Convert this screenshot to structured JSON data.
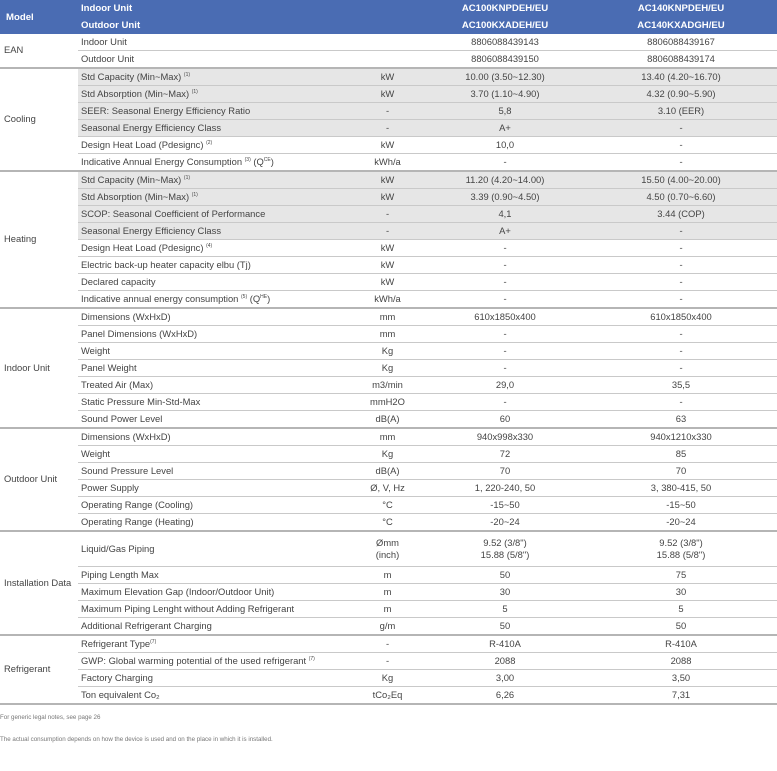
{
  "header": {
    "model_label": "Model",
    "indoor_label": "Indoor Unit",
    "outdoor_label": "Outdoor Unit",
    "models": [
      {
        "indoor": "AC100KNPDEH/EU",
        "outdoor": "AC100KXADEH/EU"
      },
      {
        "indoor": "AC140KNPDEH/EU",
        "outdoor": "AC140KXADGH/EU"
      }
    ]
  },
  "sections": [
    {
      "name": "EAN",
      "rows": [
        {
          "parts": [
            {
              "t": "Indoor Unit"
            }
          ],
          "unit": "",
          "v1": "8806088439143",
          "v2": "8806088439167",
          "shaded": false
        },
        {
          "parts": [
            {
              "t": "Outdoor Unit"
            }
          ],
          "unit": "",
          "v1": "8806088439150",
          "v2": "8806088439174",
          "shaded": false
        }
      ]
    },
    {
      "name": "Cooling",
      "rows": [
        {
          "parts": [
            {
              "t": "Std Capacity (Min~Max) "
            },
            {
              "t": "(1)",
              "sup": true
            }
          ],
          "unit": "kW",
          "v1": "10.00 (3.50~12.30)",
          "v2": "13.40 (4.20~16.70)",
          "shaded": true
        },
        {
          "parts": [
            {
              "t": "Std Absorption (Min~Max) "
            },
            {
              "t": "(1)",
              "sup": true
            }
          ],
          "unit": "kW",
          "v1": "3.70 (1.10~4.90)",
          "v2": "4.32 (0.90~5.90)",
          "shaded": true
        },
        {
          "parts": [
            {
              "t": "SEER: Seasonal Energy Efficiency Ratio"
            }
          ],
          "unit": "-",
          "v1": "5,8",
          "v2": "3.10 (EER)",
          "shaded": true
        },
        {
          "parts": [
            {
              "t": "Seasonal Energy Efficiency Class"
            }
          ],
          "unit": "-",
          "v1": "A+",
          "v2": "-",
          "shaded": true
        },
        {
          "parts": [
            {
              "t": "Design Heat Load (Pdesignc) "
            },
            {
              "t": "(2)",
              "sup": true
            }
          ],
          "unit": "kW",
          "v1": "10,0",
          "v2": "-",
          "shaded": false
        },
        {
          "parts": [
            {
              "t": "Indicative Annual Energy Consumption "
            },
            {
              "t": "(3)",
              "sup": true
            },
            {
              "t": " (Q"
            },
            {
              "t": "CE",
              "sup": true
            },
            {
              "t": ")"
            }
          ],
          "unit": "kWh/a",
          "v1": "-",
          "v2": "-",
          "shaded": false
        }
      ]
    },
    {
      "name": "Heating",
      "rows": [
        {
          "parts": [
            {
              "t": "Std Capacity (Min~Max) "
            },
            {
              "t": "(1)",
              "sup": true
            }
          ],
          "unit": "kW",
          "v1": "11.20 (4.20~14.00)",
          "v2": "15.50 (4.00~20.00)",
          "shaded": true
        },
        {
          "parts": [
            {
              "t": "Std Absorption (Min~Max) "
            },
            {
              "t": "(1)",
              "sup": true
            }
          ],
          "unit": "kW",
          "v1": "3.39 (0.90~4.50)",
          "v2": "4.50 (0.70~6.60)",
          "shaded": true
        },
        {
          "parts": [
            {
              "t": "SCOP: Seasonal Coefficient of Performance"
            }
          ],
          "unit": "-",
          "v1": "4,1",
          "v2": "3.44 (COP)",
          "shaded": true
        },
        {
          "parts": [
            {
              "t": "Seasonal Energy Efficiency Class"
            }
          ],
          "unit": "-",
          "v1": "A+",
          "v2": "-",
          "shaded": true
        },
        {
          "parts": [
            {
              "t": "Design Heat Load (Pdesignc) "
            },
            {
              "t": "(4)",
              "sup": true
            }
          ],
          "unit": "kW",
          "v1": "-",
          "v2": "-",
          "shaded": false
        },
        {
          "parts": [
            {
              "t": "Electric back-up heater capacity elbu (Tj)"
            }
          ],
          "unit": "kW",
          "v1": "-",
          "v2": "-",
          "shaded": false
        },
        {
          "parts": [
            {
              "t": "Declared capacity"
            }
          ],
          "unit": "kW",
          "v1": "-",
          "v2": "-",
          "shaded": false
        },
        {
          "parts": [
            {
              "t": "Indicative annual energy consumption "
            },
            {
              "t": "(5)",
              "sup": true
            },
            {
              "t": " (Q"
            },
            {
              "t": "HE",
              "sup": true
            },
            {
              "t": ")"
            }
          ],
          "unit": "kWh/a",
          "v1": "-",
          "v2": "-",
          "shaded": false
        }
      ]
    },
    {
      "name": "Indoor Unit",
      "rows": [
        {
          "parts": [
            {
              "t": "Dimensions (WxHxD)"
            }
          ],
          "unit": "mm",
          "v1": "610x1850x400",
          "v2": "610x1850x400",
          "shaded": false
        },
        {
          "parts": [
            {
              "t": "Panel Dimensions (WxHxD)"
            }
          ],
          "unit": "mm",
          "v1": "-",
          "v2": "-",
          "shaded": false
        },
        {
          "parts": [
            {
              "t": "Weight"
            }
          ],
          "unit": "Kg",
          "v1": "-",
          "v2": "-",
          "shaded": false
        },
        {
          "parts": [
            {
              "t": "Panel Weight"
            }
          ],
          "unit": "Kg",
          "v1": "-",
          "v2": "-",
          "shaded": false
        },
        {
          "parts": [
            {
              "t": "Treated Air (Max)"
            }
          ],
          "unit": "m3/min",
          "v1": "29,0",
          "v2": "35,5",
          "shaded": false
        },
        {
          "parts": [
            {
              "t": "Static Pressure Min-Std-Max"
            }
          ],
          "unit": "mmH2O",
          "v1": "-",
          "v2": "-",
          "shaded": false
        },
        {
          "parts": [
            {
              "t": "Sound Power Level"
            }
          ],
          "unit": "dB(A)",
          "v1": "60",
          "v2": "63",
          "shaded": false
        }
      ]
    },
    {
      "name": "Outdoor Unit",
      "rows": [
        {
          "parts": [
            {
              "t": "Dimensions (WxHxD)"
            }
          ],
          "unit": "mm",
          "v1": "940x998x330",
          "v2": "940x1210x330",
          "shaded": false
        },
        {
          "parts": [
            {
              "t": "Weight"
            }
          ],
          "unit": "Kg",
          "v1": "72",
          "v2": "85",
          "shaded": false
        },
        {
          "parts": [
            {
              "t": "Sound Pressure Level"
            }
          ],
          "unit": "dB(A)",
          "v1": "70",
          "v2": "70",
          "shaded": false
        },
        {
          "parts": [
            {
              "t": "Power Supply"
            }
          ],
          "unit": "Ø, V, Hz",
          "v1": "1, 220-240, 50",
          "v2": "3, 380-415, 50",
          "shaded": false
        },
        {
          "parts": [
            {
              "t": "Operating Range (Cooling)"
            }
          ],
          "unit": "°C",
          "v1": "-15~50",
          "v2": "-15~50",
          "shaded": false
        },
        {
          "parts": [
            {
              "t": "Operating Range (Heating)"
            }
          ],
          "unit": "°C",
          "v1": "-20~24",
          "v2": "-20~24",
          "shaded": false
        }
      ]
    },
    {
      "name": "Installation Data",
      "rows": [
        {
          "parts": [
            {
              "t": "Liquid/Gas Piping"
            }
          ],
          "unit": "Ømm\n(inch)",
          "v1": "9.52 (3/8\")\n15.88 (5/8\")",
          "v2": "9.52 (3/8\")\n15.88 (5/8\")",
          "shaded": false,
          "tall": true
        },
        {
          "parts": [
            {
              "t": "Piping Length Max"
            }
          ],
          "unit": "m",
          "v1": "50",
          "v2": "75",
          "shaded": false
        },
        {
          "parts": [
            {
              "t": "Maximum Elevation Gap (Indoor/Outdoor Unit)"
            }
          ],
          "unit": "m",
          "v1": "30",
          "v2": "30",
          "shaded": false
        },
        {
          "parts": [
            {
              "t": "Maximum Piping Lenght without Adding Refrigerant"
            }
          ],
          "unit": "m",
          "v1": "5",
          "v2": "5",
          "shaded": false
        },
        {
          "parts": [
            {
              "t": "Additional Refrigerant Charging"
            }
          ],
          "unit": "g/m",
          "v1": "50",
          "v2": "50",
          "shaded": false
        }
      ]
    },
    {
      "name": "Refrigerant",
      "rows": [
        {
          "parts": [
            {
              "t": "Refrigerant Type"
            },
            {
              "t": "(7)",
              "sup": true
            }
          ],
          "unit": "-",
          "v1": "R-410A",
          "v2": "R-410A",
          "shaded": false
        },
        {
          "parts": [
            {
              "t": "GWP: Global warming potential of the used refrigerant "
            },
            {
              "t": "(7)",
              "sup": true
            }
          ],
          "unit": "-",
          "v1": "2088",
          "v2": "2088",
          "shaded": false
        },
        {
          "parts": [
            {
              "t": "Factory Charging"
            }
          ],
          "unit": "Kg",
          "v1": "3,00",
          "v2": "3,50",
          "shaded": false
        },
        {
          "parts": [
            {
              "t": "Ton equivalent Co₂"
            }
          ],
          "unit": "tCo₂Eq",
          "v1": "6,26",
          "v2": "7,31",
          "shaded": false
        }
      ]
    }
  ],
  "footnotes": [
    "For generic legal notes, see page 26",
    "The actual consumption depends on how the device is used and on the place in which it is installed."
  ]
}
